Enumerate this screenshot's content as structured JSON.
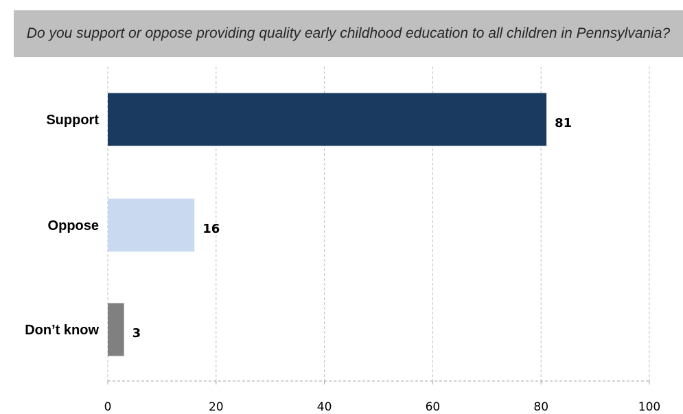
{
  "chart_data": {
    "type": "bar",
    "orientation": "horizontal",
    "title": "Do you support or oppose providing quality early childhood education to all children in Pennsylvania?",
    "categories": [
      "Support",
      "Oppose",
      "Don’t know"
    ],
    "values": [
      81,
      16,
      3
    ],
    "colors": [
      "#1a3a5f",
      "#c9d9f0",
      "#808080"
    ],
    "xlim": [
      0,
      100
    ],
    "xticks": [
      "0",
      "20",
      "40",
      "60",
      "80",
      "100"
    ],
    "grid": true,
    "legend": "none"
  }
}
